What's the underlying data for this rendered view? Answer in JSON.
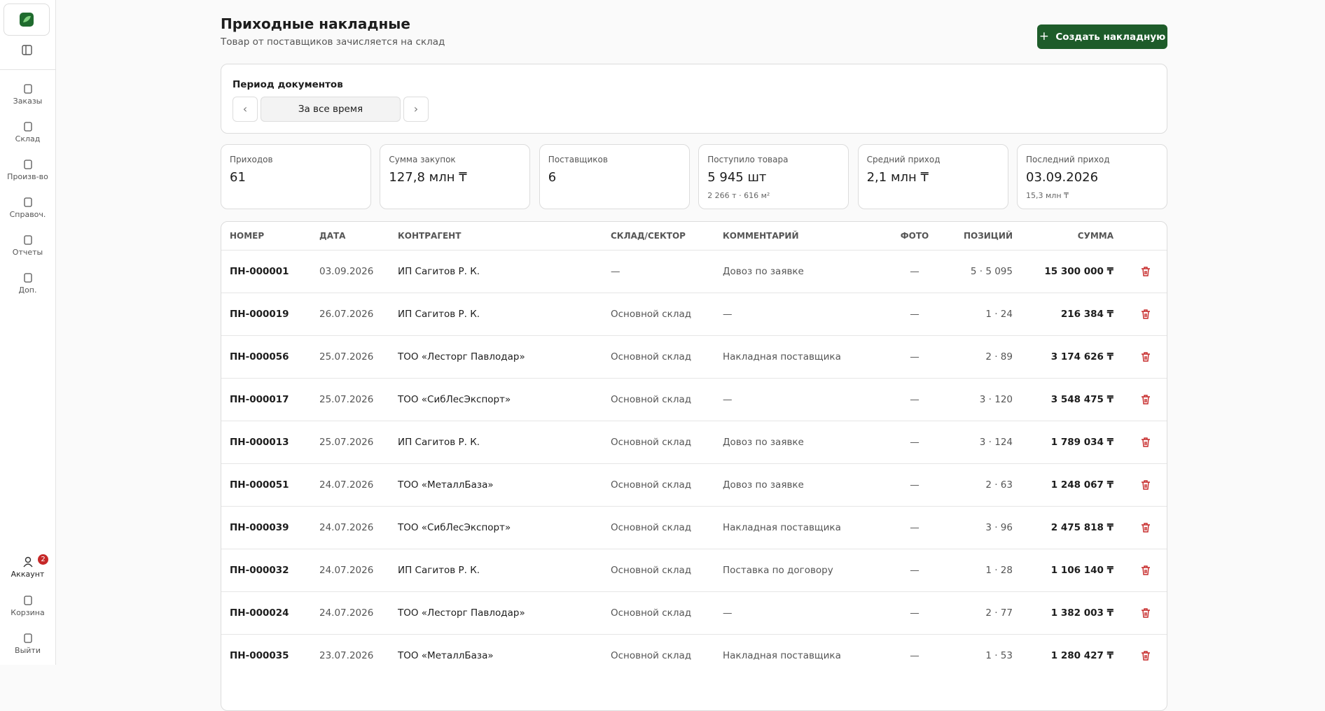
{
  "sidebar": {
    "nav": [
      "Заказы",
      "Склад",
      "Произв-во",
      "Справоч.",
      "Отчеты",
      "Доп."
    ],
    "account": {
      "label": "Аккаунт",
      "badge": "2"
    },
    "bottom": [
      "Корзина",
      "Выйти"
    ]
  },
  "header": {
    "title": "Приходные накладные",
    "subtitle": "Товар от поставщиков зачисляется на склад",
    "create_button": "Создать накладную"
  },
  "period": {
    "label": "Период документов",
    "value": "За все время"
  },
  "stats": [
    {
      "label": "Приходов",
      "value": "61"
    },
    {
      "label": "Сумма закупок",
      "value": "127,8 млн ₸"
    },
    {
      "label": "Поставщиков",
      "value": "6"
    },
    {
      "label": "Поступило товара",
      "value": "5 945 шт",
      "sub": "2 266 т · 616 м²"
    },
    {
      "label": "Средний приход",
      "value": "2,1 млн ₸"
    },
    {
      "label": "Последний приход",
      "value": "03.09.2026",
      "sub": "15,3 млн ₸"
    }
  ],
  "table": {
    "columns": [
      "НОМЕР",
      "ДАТА",
      "КОНТРАГЕНТ",
      "СКЛАД/СЕКТОР",
      "КОММЕНТАРИЙ",
      "ФОТО",
      "ПОЗИЦИЙ",
      "СУММА"
    ],
    "rows": [
      [
        "ПН-000001",
        "03.09.2026",
        "ИП Сагитов Р. К.",
        "—",
        "Довоз по заявке",
        "—",
        "5 · 5 095",
        "15 300 000 ₸"
      ],
      [
        "ПН-000019",
        "26.07.2026",
        "ИП Сагитов Р. К.",
        "Основной склад",
        "—",
        "—",
        "1 · 24",
        "216 384 ₸"
      ],
      [
        "ПН-000056",
        "25.07.2026",
        "ТОО «Лесторг Павлодар»",
        "Основной склад",
        "Накладная поставщика",
        "—",
        "2 · 89",
        "3 174 626 ₸"
      ],
      [
        "ПН-000017",
        "25.07.2026",
        "ТОО «СибЛесЭкспорт»",
        "Основной склад",
        "—",
        "—",
        "3 · 120",
        "3 548 475 ₸"
      ],
      [
        "ПН-000013",
        "25.07.2026",
        "ИП Сагитов Р. К.",
        "Основной склад",
        "Довоз по заявке",
        "—",
        "3 · 124",
        "1 789 034 ₸"
      ],
      [
        "ПН-000051",
        "24.07.2026",
        "ТОО «МеталлБаза»",
        "Основной склад",
        "Довоз по заявке",
        "—",
        "2 · 63",
        "1 248 067 ₸"
      ],
      [
        "ПН-000039",
        "24.07.2026",
        "ТОО «СибЛесЭкспорт»",
        "Основной склад",
        "Накладная поставщика",
        "—",
        "3 · 96",
        "2 475 818 ₸"
      ],
      [
        "ПН-000032",
        "24.07.2026",
        "ИП Сагитов Р. К.",
        "Основной склад",
        "Поставка по договору",
        "—",
        "1 · 28",
        "1 106 140 ₸"
      ],
      [
        "ПН-000024",
        "24.07.2026",
        "ТОО «Лесторг Павлодар»",
        "Основной склад",
        "—",
        "—",
        "2 · 77",
        "1 382 003 ₸"
      ],
      [
        "ПН-000035",
        "23.07.2026",
        "ТОО «МеталлБаза»",
        "Основной склад",
        "Накладная поставщика",
        "—",
        "1 · 53",
        "1 280 427 ₸"
      ]
    ]
  }
}
